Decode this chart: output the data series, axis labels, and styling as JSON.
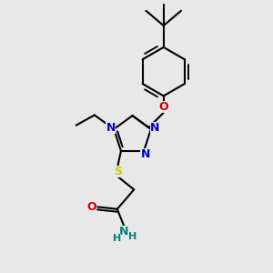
{
  "background_color": "#e8e8e8",
  "bond_color": "#000000",
  "N_color": "#0000cc",
  "O_color": "#cc0000",
  "S_color": "#cccc00",
  "NH2_color": "#008080",
  "line_width": 1.5,
  "figsize": [
    3.0,
    3.0
  ],
  "dpi": 100,
  "xlim": [
    0,
    10
  ],
  "ylim": [
    0,
    10
  ]
}
